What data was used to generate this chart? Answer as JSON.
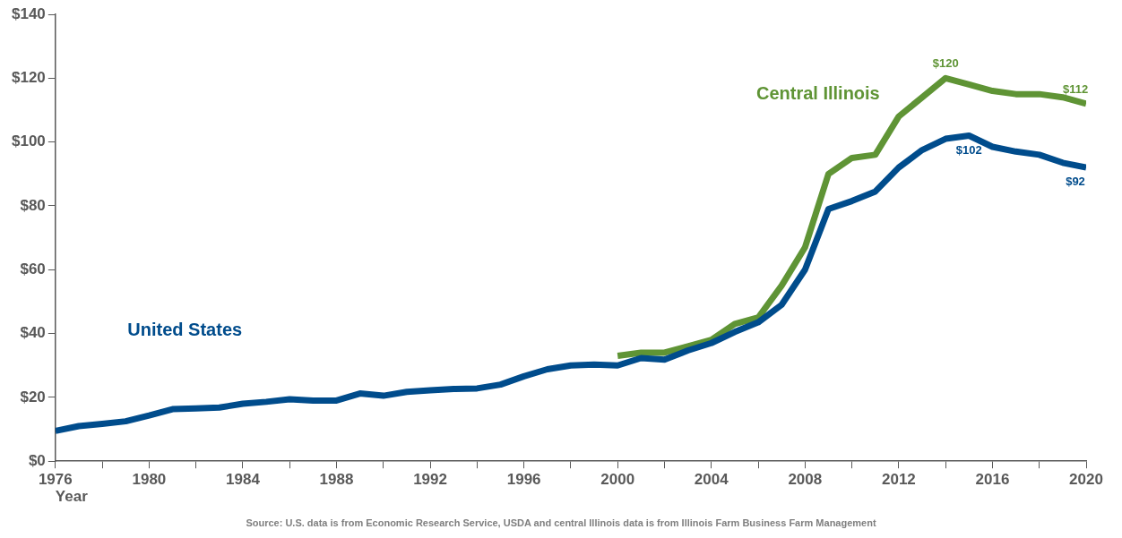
{
  "chart_data": {
    "type": "line",
    "xlabel": "Year",
    "x": [
      1976,
      1977,
      1978,
      1979,
      1980,
      1981,
      1982,
      1983,
      1984,
      1985,
      1986,
      1987,
      1988,
      1989,
      1990,
      1991,
      1992,
      1993,
      1994,
      1995,
      1996,
      1997,
      1998,
      1999,
      2000,
      2001,
      2002,
      2003,
      2004,
      2005,
      2006,
      2007,
      2008,
      2009,
      2010,
      2011,
      2012,
      2013,
      2014,
      2015,
      2016,
      2017,
      2018,
      2019,
      2020
    ],
    "series": [
      {
        "name": "United States",
        "color": "#004c8c",
        "values": [
          9.5,
          11,
          11.7,
          12.5,
          14.3,
          16.3,
          16.5,
          16.8,
          18,
          18.6,
          19.4,
          19,
          19,
          21.2,
          20.5,
          21.7,
          22.2,
          22.6,
          22.8,
          24,
          26.6,
          28.8,
          30,
          30.3,
          30,
          32.3,
          31.8,
          34.7,
          37,
          40.5,
          43.5,
          49,
          60,
          79,
          81.5,
          84.5,
          92,
          97.5,
          101,
          102,
          98.5,
          97,
          96,
          93.5,
          92
        ],
        "value_labels": [
          null,
          null,
          null,
          null,
          null,
          null,
          null,
          null,
          null,
          null,
          null,
          null,
          null,
          null,
          null,
          null,
          null,
          null,
          null,
          null,
          null,
          null,
          null,
          null,
          null,
          null,
          null,
          null,
          null,
          null,
          null,
          null,
          null,
          null,
          null,
          null,
          null,
          null,
          null,
          "$102",
          null,
          null,
          null,
          null,
          "$92"
        ]
      },
      {
        "name": "Central Illinois",
        "color": "#5f9435",
        "x": [
          2000,
          2001,
          2002,
          2003,
          2004,
          2005,
          2006,
          2007,
          2008,
          2009,
          2010,
          2011,
          2012,
          2013,
          2014,
          2015,
          2016,
          2017,
          2018,
          2019,
          2020
        ],
        "values": [
          33,
          34,
          34,
          36,
          38,
          43,
          45,
          55,
          67,
          90,
          95,
          96,
          108,
          114,
          120,
          118,
          116,
          115,
          115,
          114,
          112
        ],
        "value_labels": [
          null,
          null,
          null,
          null,
          null,
          null,
          null,
          null,
          null,
          null,
          null,
          null,
          null,
          null,
          "$120",
          null,
          null,
          null,
          null,
          null,
          "$112"
        ]
      }
    ],
    "xlim": [
      1976,
      2020
    ],
    "xticks": [
      1976,
      {
        "value": 1978,
        "label": null
      },
      1980,
      {
        "value": 1982,
        "label": null
      },
      1984,
      {
        "value": 1986,
        "label": null
      },
      1988,
      {
        "value": 1990,
        "label": null
      },
      1992,
      {
        "value": 1994,
        "label": null
      },
      1996,
      {
        "value": 1998,
        "label": null
      },
      2000,
      {
        "value": 2002,
        "label": null
      },
      2004,
      {
        "value": 2006,
        "label": null
      },
      2008,
      {
        "value": 2010,
        "label": null
      },
      2012,
      {
        "value": 2014,
        "label": null
      },
      2016,
      {
        "value": 2018,
        "label": null
      },
      2020
    ],
    "ylim": [
      0,
      140
    ],
    "yticks": [
      {
        "value": 0,
        "label": "$0"
      },
      {
        "value": 20,
        "label": "$20"
      },
      {
        "value": 40,
        "label": "$40"
      },
      {
        "value": 60,
        "label": "$60"
      },
      {
        "value": 80,
        "label": "$80"
      },
      {
        "value": 100,
        "label": "$100"
      },
      {
        "value": 120,
        "label": "$120"
      },
      {
        "value": 140,
        "label": "$140"
      }
    ],
    "grid": false,
    "legend": false,
    "marker": "none",
    "line_style": "solid",
    "annotations": [
      "Source:  U.S. data is from Economic Research Service, USDA and central Illinois data is from Illinois Farm Business Farm Management"
    ]
  }
}
